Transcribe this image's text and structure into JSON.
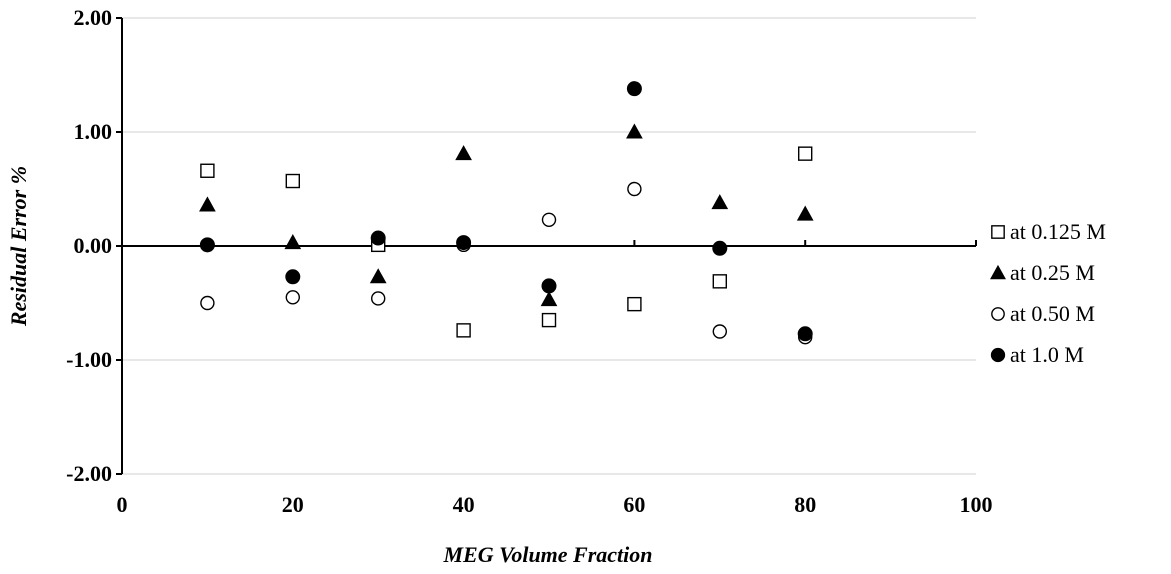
{
  "chart_data": {
    "type": "scatter",
    "title": "",
    "xlabel": "MEG Volume Fraction",
    "ylabel": "Residual Error %",
    "xlim": [
      0,
      100
    ],
    "ylim": [
      -2.0,
      2.0
    ],
    "x_ticks": [
      0,
      20,
      40,
      60,
      80,
      100
    ],
    "y_ticks": [
      2.0,
      1.0,
      0.0,
      -1.0,
      -2.0
    ],
    "x_tick_labels": [
      "0",
      "20",
      "40",
      "60",
      "80",
      "100"
    ],
    "y_tick_labels": [
      "2.00",
      "1.00",
      "0.00",
      "-1.00",
      "-2.00"
    ],
    "grid": "horizontal",
    "legend_position": "right",
    "series": [
      {
        "name": "at 0.125 M",
        "marker": "open-square",
        "color": "#000000",
        "x": [
          10,
          20,
          30,
          40,
          50,
          60,
          70,
          80
        ],
        "y": [
          0.66,
          0.57,
          0.01,
          -0.74,
          -0.65,
          -0.51,
          -0.31,
          0.81
        ]
      },
      {
        "name": "at 0.25 M",
        "marker": "filled-triangle",
        "color": "#000000",
        "x": [
          10,
          20,
          30,
          40,
          50,
          60,
          70,
          80
        ],
        "y": [
          0.36,
          0.03,
          -0.27,
          0.81,
          -0.47,
          1.0,
          0.38,
          0.28
        ]
      },
      {
        "name": "at 0.50 M",
        "marker": "open-circle",
        "color": "#000000",
        "x": [
          10,
          20,
          30,
          40,
          50,
          60,
          70,
          80
        ],
        "y": [
          -0.5,
          -0.45,
          -0.46,
          0.01,
          0.23,
          0.5,
          -0.75,
          -0.8
        ]
      },
      {
        "name": "at 1.0 M",
        "marker": "filled-circle",
        "color": "#000000",
        "x": [
          10,
          20,
          30,
          40,
          50,
          60,
          70,
          80
        ],
        "y": [
          0.01,
          -0.27,
          0.07,
          0.03,
          -0.35,
          1.38,
          -0.02,
          -0.77
        ]
      }
    ]
  }
}
